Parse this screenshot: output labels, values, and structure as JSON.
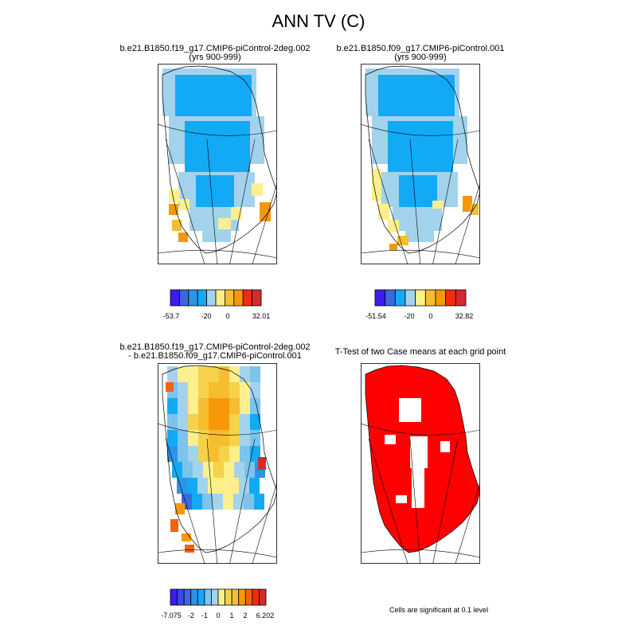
{
  "figure": {
    "title": "ANN TV (C)"
  },
  "panels": [
    {
      "title_lines": [
        "b.e21.B1850.f19_g17.CMIP6-piControl-2deg.002",
        "(yrs 900-999)"
      ]
    },
    {
      "title_lines": [
        "b.e21.B1850.f09_g17.CMIP6-piControl.001",
        "(yrs 900-999)"
      ]
    },
    {
      "title_lines": [
        "b.e21.B1850.f19_g17.CMIP6-piControl-2deg.002",
        "- b.e21.B1850.f09_g17.CMIP6-piControl.001"
      ]
    },
    {
      "title_lines": [
        "T-Test of two Case means at each grid point"
      ]
    }
  ],
  "colorbars": [
    {
      "colors": [
        "#3c1cf0",
        "#3a68e0",
        "#2e93e6",
        "#12aaf5",
        "#a3d3ec",
        "#fcf08c",
        "#f6bd31",
        "#f79809",
        "#f32a0d",
        "#d52a2e"
      ],
      "tick_labels": [
        "-53.7",
        "-20",
        "0",
        "32.01"
      ]
    },
    {
      "colors": [
        "#3c1cf0",
        "#3a68e0",
        "#12aaf5",
        "#a3d3ec",
        "#fcf08c",
        "#f6bd31",
        "#f79809",
        "#f32a0d",
        "#d52a2e"
      ],
      "tick_labels": [
        "-51.54",
        "-20",
        "0",
        "32.82"
      ]
    },
    {
      "colors": [
        "#3c1cf0",
        "#3a48e8",
        "#3a68e0",
        "#2e93e6",
        "#12aaf5",
        "#7cc3ee",
        "#a3d3ec",
        "#fcf08c",
        "#f6d24a",
        "#f6bd31",
        "#f79809",
        "#f5620d",
        "#f32a0d",
        "#d52a2e"
      ],
      "tick_labels": [
        "-7.075",
        "-2",
        "-1",
        "0",
        "1",
        "2",
        "6.202"
      ]
    }
  ],
  "significance_note": "Cells are significant at 0.1 level",
  "chart_data": [
    {
      "type": "heatmap",
      "title": "b.e21.B1850.f19_g17.CMIP6-piControl-2deg.002 (yrs 900-999)",
      "colorbar_range": [
        -53.7,
        32.01
      ],
      "colorbar_ticks": [
        -53.7,
        -20,
        0,
        32.01
      ]
    },
    {
      "type": "heatmap",
      "title": "b.e21.B1850.f09_g17.CMIP6-piControl.001 (yrs 900-999)",
      "colorbar_range": [
        -51.54,
        32.82
      ],
      "colorbar_ticks": [
        -51.54,
        -20,
        0,
        32.82
      ]
    },
    {
      "type": "heatmap",
      "title": "b.e21.B1850.f19_g17.CMIP6-piControl-2deg.002 - b.e21.B1850.f09_g17.CMIP6-piControl.001",
      "colorbar_range": [
        -7.075,
        6.202
      ],
      "colorbar_ticks": [
        -7.075,
        -2,
        -1,
        0,
        1,
        2,
        6.202
      ]
    },
    {
      "type": "heatmap",
      "title": "T-Test of two Case means at each grid point",
      "note": "Cells are significant at 0.1 level"
    }
  ]
}
